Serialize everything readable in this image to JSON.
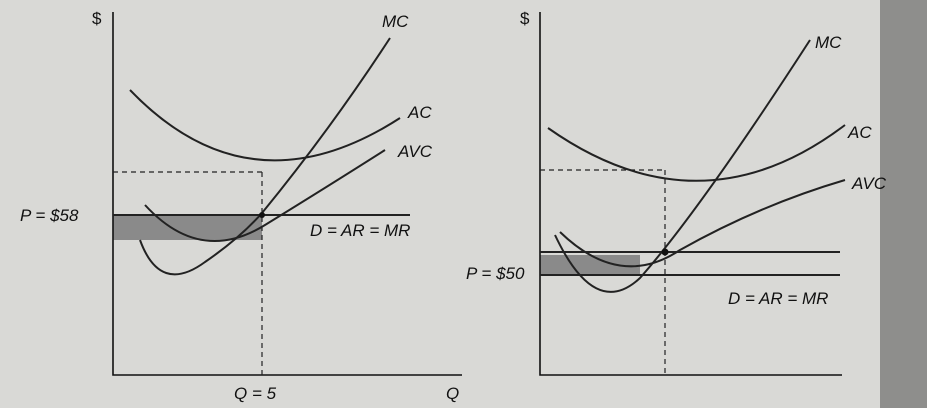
{
  "panels": [
    {
      "y_axis_label": "$",
      "mc_label": "MC",
      "ac_label": "AC",
      "avc_label": "AVC",
      "price_label": "P = $58",
      "demand_label": "D = AR = MR",
      "quantity_label": "Q = 5",
      "x_axis_label": "Q"
    },
    {
      "y_axis_label": "$",
      "mc_label": "MC",
      "ac_label": "AC",
      "avc_label": "AVC",
      "price_label": "P = $50",
      "demand_label": "D = AR = MR"
    }
  ]
}
